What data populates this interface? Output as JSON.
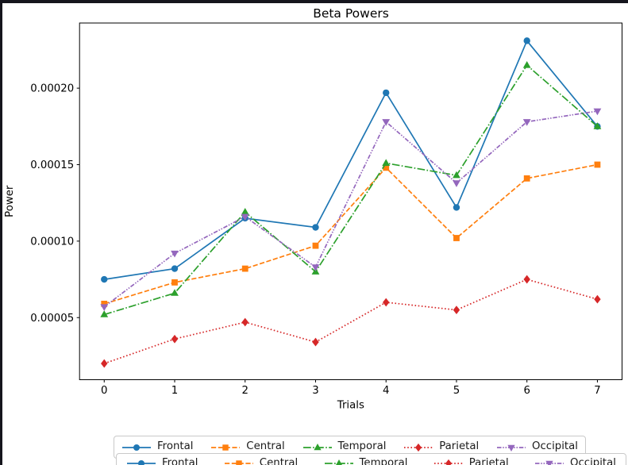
{
  "window": {
    "border_color": "#15151d"
  },
  "chart_data": {
    "type": "line",
    "title": "Beta Powers",
    "xlabel": "Trials",
    "ylabel": "Power",
    "grid": false,
    "legend_position": "below-plot, horizontal row",
    "x": [
      0,
      1,
      2,
      3,
      4,
      5,
      6,
      7
    ],
    "xtick_labels": [
      "0",
      "1",
      "2",
      "3",
      "4",
      "5",
      "6",
      "7"
    ],
    "ytick_values": [
      5e-05,
      0.0001,
      0.00015,
      0.0002
    ],
    "ytick_labels": [
      "0.00005",
      "0.00010",
      "0.00015",
      "0.00020"
    ],
    "xlim": [
      -0.35,
      7.35
    ],
    "ylim": [
      9.4e-06,
      0.0002426
    ],
    "series": [
      {
        "name": "Frontal",
        "color": "#1f77b4",
        "linestyle": "solid",
        "marker": "circle",
        "values": [
          7.5e-05,
          8.2e-05,
          0.000115,
          0.000109,
          0.000197,
          0.000122,
          0.000231,
          0.000175
        ]
      },
      {
        "name": "Central",
        "color": "#ff7f0e",
        "linestyle": "dashed",
        "marker": "square",
        "values": [
          5.9e-05,
          7.3e-05,
          8.2e-05,
          9.7e-05,
          0.000148,
          0.000102,
          0.000141,
          0.00015
        ]
      },
      {
        "name": "Temporal",
        "color": "#2ca02c",
        "linestyle": "dashdot",
        "marker": "triangle-up",
        "values": [
          5.2e-05,
          6.6e-05,
          0.000119,
          8e-05,
          0.000151,
          0.000143,
          0.000215,
          0.000175
        ]
      },
      {
        "name": "Parietal",
        "color": "#d62728",
        "linestyle": "dotted",
        "marker": "diamond",
        "values": [
          2e-05,
          3.6e-05,
          4.7e-05,
          3.4e-05,
          6e-05,
          5.5e-05,
          7.5e-05,
          6.2e-05
        ]
      },
      {
        "name": "Occipital",
        "color": "#9467bd",
        "linestyle": "dashdotdot",
        "marker": "triangle-down",
        "values": [
          5.7e-05,
          9.2e-05,
          0.000116,
          8.3e-05,
          0.000178,
          0.000138,
          0.000178,
          0.000185
        ]
      }
    ]
  },
  "legend": {
    "entries": [
      "Frontal",
      "Central",
      "Temporal",
      "Parietal",
      "Occipital"
    ]
  }
}
